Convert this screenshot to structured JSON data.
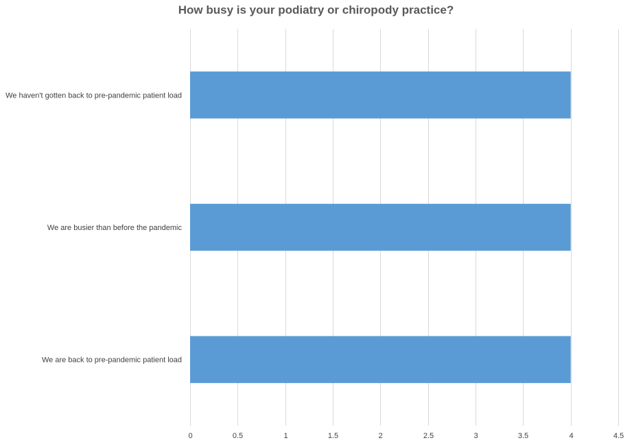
{
  "chart_data": {
    "type": "bar",
    "orientation": "horizontal",
    "title": "How busy is your podiatry or chiropody practice?",
    "categories": [
      "We haven't gotten back to pre-pandemic patient load",
      "We are busier than before the pandemic",
      "We are back to pre-pandemic patient load"
    ],
    "values": [
      4,
      4,
      4
    ],
    "xlim": [
      0,
      4.5
    ],
    "xticks": [
      0,
      0.5,
      1,
      1.5,
      2,
      2.5,
      3,
      3.5,
      4,
      4.5
    ],
    "xtick_labels": [
      "0",
      "0.5",
      "1",
      "1.5",
      "2",
      "2.5",
      "3",
      "3.5",
      "4",
      "4.5"
    ],
    "xlabel": "",
    "ylabel": "",
    "grid": true,
    "bar_color": "#5B9BD5",
    "grid_color": "#D9D9D9"
  }
}
